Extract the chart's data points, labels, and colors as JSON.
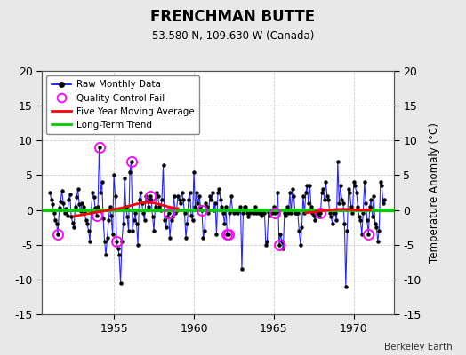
{
  "title": "FRENCHMAN BUTTE",
  "subtitle": "53.580 N, 109.630 W (Canada)",
  "ylabel": "Temperature Anomaly (°C)",
  "credit": "Berkeley Earth",
  "ylim": [
    -15,
    20
  ],
  "yticks": [
    -15,
    -10,
    -5,
    0,
    5,
    10,
    15,
    20
  ],
  "xlim": [
    1950.5,
    1972.5
  ],
  "xticks": [
    1955,
    1960,
    1965,
    1970
  ],
  "bg_color": "#e8e8e8",
  "plot_bg_color": "#ffffff",
  "grid_color": "#cccccc",
  "raw_line_color": "#0000ff",
  "raw_marker_color": "#000000",
  "qc_fail_color": "#ff00ff",
  "moving_avg_color": "#ff0000",
  "trend_color": "#00cc00",
  "raw_data": [
    [
      1951.0,
      2.5
    ],
    [
      1951.083,
      1.5
    ],
    [
      1951.167,
      0.8
    ],
    [
      1951.25,
      -0.5
    ],
    [
      1951.333,
      -1.5
    ],
    [
      1951.417,
      -2.0
    ],
    [
      1951.5,
      -3.5
    ],
    [
      1951.583,
      0.3
    ],
    [
      1951.667,
      1.2
    ],
    [
      1951.75,
      2.8
    ],
    [
      1951.833,
      1.0
    ],
    [
      1951.917,
      -0.5
    ],
    [
      1952.0,
      0.2
    ],
    [
      1952.083,
      -0.8
    ],
    [
      1952.167,
      1.5
    ],
    [
      1952.25,
      2.2
    ],
    [
      1952.333,
      -1.0
    ],
    [
      1952.417,
      -1.8
    ],
    [
      1952.5,
      -2.5
    ],
    [
      1952.583,
      0.5
    ],
    [
      1952.667,
      1.8
    ],
    [
      1952.75,
      3.0
    ],
    [
      1952.833,
      0.8
    ],
    [
      1952.917,
      -0.2
    ],
    [
      1953.0,
      1.0
    ],
    [
      1953.083,
      0.5
    ],
    [
      1953.167,
      -0.3
    ],
    [
      1953.25,
      -1.5
    ],
    [
      1953.333,
      -2.0
    ],
    [
      1953.417,
      -3.0
    ],
    [
      1953.5,
      -4.5
    ],
    [
      1953.583,
      0.0
    ],
    [
      1953.667,
      2.5
    ],
    [
      1953.75,
      1.8
    ],
    [
      1953.833,
      0.3
    ],
    [
      1953.917,
      -0.8
    ],
    [
      1954.0,
      0.5
    ],
    [
      1954.083,
      9.0
    ],
    [
      1954.167,
      2.5
    ],
    [
      1954.25,
      4.0
    ],
    [
      1954.333,
      -1.2
    ],
    [
      1954.417,
      -4.5
    ],
    [
      1954.5,
      -6.5
    ],
    [
      1954.583,
      -4.0
    ],
    [
      1954.667,
      -1.5
    ],
    [
      1954.75,
      0.5
    ],
    [
      1954.833,
      -0.8
    ],
    [
      1954.917,
      -3.5
    ],
    [
      1955.0,
      5.0
    ],
    [
      1955.083,
      2.0
    ],
    [
      1955.167,
      -4.5
    ],
    [
      1955.25,
      -5.5
    ],
    [
      1955.333,
      -6.5
    ],
    [
      1955.417,
      -10.5
    ],
    [
      1955.5,
      -4.5
    ],
    [
      1955.583,
      -2.0
    ],
    [
      1955.667,
      4.5
    ],
    [
      1955.75,
      0.5
    ],
    [
      1955.833,
      -1.0
    ],
    [
      1955.917,
      -3.0
    ],
    [
      1956.0,
      5.5
    ],
    [
      1956.083,
      7.0
    ],
    [
      1956.167,
      -3.0
    ],
    [
      1956.25,
      -1.5
    ],
    [
      1956.333,
      -0.5
    ],
    [
      1956.417,
      -2.0
    ],
    [
      1956.5,
      -5.0
    ],
    [
      1956.583,
      1.5
    ],
    [
      1956.667,
      2.5
    ],
    [
      1956.75,
      1.0
    ],
    [
      1956.833,
      -0.5
    ],
    [
      1956.917,
      -1.5
    ],
    [
      1957.0,
      2.0
    ],
    [
      1957.083,
      1.5
    ],
    [
      1957.167,
      0.5
    ],
    [
      1957.25,
      2.0
    ],
    [
      1957.333,
      1.5
    ],
    [
      1957.417,
      -1.0
    ],
    [
      1957.5,
      -3.0
    ],
    [
      1957.583,
      0.5
    ],
    [
      1957.667,
      2.5
    ],
    [
      1957.75,
      2.0
    ],
    [
      1957.833,
      0.5
    ],
    [
      1957.917,
      0.0
    ],
    [
      1958.0,
      1.5
    ],
    [
      1958.083,
      6.5
    ],
    [
      1958.167,
      -1.5
    ],
    [
      1958.25,
      -2.5
    ],
    [
      1958.333,
      -1.0
    ],
    [
      1958.417,
      -0.5
    ],
    [
      1958.5,
      -4.0
    ],
    [
      1958.583,
      -1.5
    ],
    [
      1958.667,
      -1.0
    ],
    [
      1958.75,
      2.0
    ],
    [
      1958.833,
      -0.5
    ],
    [
      1958.917,
      0.0
    ],
    [
      1959.0,
      2.0
    ],
    [
      1959.083,
      1.5
    ],
    [
      1959.167,
      1.0
    ],
    [
      1959.25,
      2.5
    ],
    [
      1959.333,
      1.5
    ],
    [
      1959.417,
      -0.5
    ],
    [
      1959.5,
      -4.0
    ],
    [
      1959.583,
      -2.0
    ],
    [
      1959.667,
      1.5
    ],
    [
      1959.75,
      2.5
    ],
    [
      1959.833,
      -0.8
    ],
    [
      1959.917,
      -1.5
    ],
    [
      1960.0,
      5.5
    ],
    [
      1960.083,
      0.5
    ],
    [
      1960.167,
      2.5
    ],
    [
      1960.25,
      1.0
    ],
    [
      1960.333,
      2.0
    ],
    [
      1960.417,
      0.5
    ],
    [
      1960.5,
      0.0
    ],
    [
      1960.583,
      -4.0
    ],
    [
      1960.667,
      -3.0
    ],
    [
      1960.75,
      1.0
    ],
    [
      1960.833,
      0.5
    ],
    [
      1960.917,
      -0.5
    ],
    [
      1961.0,
      2.0
    ],
    [
      1961.083,
      1.5
    ],
    [
      1961.167,
      2.5
    ],
    [
      1961.25,
      0.0
    ],
    [
      1961.333,
      1.0
    ],
    [
      1961.417,
      -3.5
    ],
    [
      1961.5,
      2.5
    ],
    [
      1961.583,
      3.0
    ],
    [
      1961.667,
      1.5
    ],
    [
      1961.75,
      0.5
    ],
    [
      1961.833,
      -0.5
    ],
    [
      1961.917,
      -2.0
    ],
    [
      1962.0,
      0.5
    ],
    [
      1962.083,
      -3.5
    ],
    [
      1962.167,
      -3.5
    ],
    [
      1962.25,
      -0.5
    ],
    [
      1962.333,
      2.0
    ],
    [
      1962.417,
      0.0
    ],
    [
      1962.5,
      -0.5
    ],
    [
      1962.583,
      -0.3
    ],
    [
      1962.667,
      0.0
    ],
    [
      1962.75,
      -0.5
    ],
    [
      1962.833,
      0.0
    ],
    [
      1962.917,
      0.5
    ],
    [
      1963.0,
      -8.5
    ],
    [
      1963.083,
      -0.5
    ],
    [
      1963.167,
      0.5
    ],
    [
      1963.25,
      0.5
    ],
    [
      1963.333,
      -0.5
    ],
    [
      1963.417,
      -1.0
    ],
    [
      1963.5,
      -0.5
    ],
    [
      1963.583,
      0.0
    ],
    [
      1963.667,
      -0.3
    ],
    [
      1963.75,
      -0.5
    ],
    [
      1963.833,
      0.5
    ],
    [
      1963.917,
      -0.5
    ],
    [
      1964.0,
      0.0
    ],
    [
      1964.083,
      -0.5
    ],
    [
      1964.167,
      -0.5
    ],
    [
      1964.25,
      -0.8
    ],
    [
      1964.333,
      -0.5
    ],
    [
      1964.417,
      -0.5
    ],
    [
      1964.5,
      -5.0
    ],
    [
      1964.583,
      -4.5
    ],
    [
      1964.667,
      -0.3
    ],
    [
      1964.75,
      -0.8
    ],
    [
      1964.833,
      0.0
    ],
    [
      1964.917,
      -0.5
    ],
    [
      1965.0,
      0.5
    ],
    [
      1965.083,
      -0.5
    ],
    [
      1965.167,
      -0.3
    ],
    [
      1965.25,
      2.5
    ],
    [
      1965.333,
      -5.0
    ],
    [
      1965.417,
      -3.5
    ],
    [
      1965.5,
      -4.5
    ],
    [
      1965.583,
      -5.5
    ],
    [
      1965.667,
      -0.5
    ],
    [
      1965.75,
      -0.8
    ],
    [
      1965.833,
      0.5
    ],
    [
      1965.917,
      -0.5
    ],
    [
      1966.0,
      2.5
    ],
    [
      1966.083,
      -0.5
    ],
    [
      1966.167,
      3.0
    ],
    [
      1966.25,
      2.0
    ],
    [
      1966.333,
      -0.5
    ],
    [
      1966.417,
      -0.5
    ],
    [
      1966.5,
      -0.5
    ],
    [
      1966.583,
      -3.0
    ],
    [
      1966.667,
      -5.0
    ],
    [
      1966.75,
      -2.5
    ],
    [
      1966.833,
      2.0
    ],
    [
      1966.917,
      -0.5
    ],
    [
      1967.0,
      2.5
    ],
    [
      1967.083,
      3.5
    ],
    [
      1967.167,
      1.0
    ],
    [
      1967.25,
      3.5
    ],
    [
      1967.333,
      0.5
    ],
    [
      1967.417,
      -0.5
    ],
    [
      1967.5,
      -0.8
    ],
    [
      1967.583,
      -1.5
    ],
    [
      1967.667,
      -0.5
    ],
    [
      1967.75,
      -0.5
    ],
    [
      1967.833,
      -1.0
    ],
    [
      1967.917,
      -0.5
    ],
    [
      1968.0,
      2.5
    ],
    [
      1968.083,
      3.0
    ],
    [
      1968.167,
      1.5
    ],
    [
      1968.25,
      4.0
    ],
    [
      1968.333,
      2.0
    ],
    [
      1968.417,
      1.5
    ],
    [
      1968.5,
      -0.5
    ],
    [
      1968.583,
      -1.0
    ],
    [
      1968.667,
      -2.0
    ],
    [
      1968.75,
      -0.5
    ],
    [
      1968.833,
      -0.5
    ],
    [
      1968.917,
      -1.5
    ],
    [
      1969.0,
      7.0
    ],
    [
      1969.083,
      1.0
    ],
    [
      1969.167,
      3.5
    ],
    [
      1969.25,
      1.5
    ],
    [
      1969.333,
      1.0
    ],
    [
      1969.417,
      -2.0
    ],
    [
      1969.5,
      -11.0
    ],
    [
      1969.583,
      -3.0
    ],
    [
      1969.667,
      3.0
    ],
    [
      1969.75,
      2.5
    ],
    [
      1969.833,
      0.5
    ],
    [
      1969.917,
      -0.5
    ],
    [
      1970.0,
      4.0
    ],
    [
      1970.083,
      3.5
    ],
    [
      1970.167,
      2.5
    ],
    [
      1970.25,
      0.5
    ],
    [
      1970.333,
      -1.0
    ],
    [
      1970.417,
      -1.5
    ],
    [
      1970.5,
      -3.5
    ],
    [
      1970.583,
      -0.5
    ],
    [
      1970.667,
      4.0
    ],
    [
      1970.75,
      1.0
    ],
    [
      1970.833,
      -1.5
    ],
    [
      1970.917,
      -3.5
    ],
    [
      1971.0,
      0.5
    ],
    [
      1971.083,
      1.5
    ],
    [
      1971.167,
      -1.0
    ],
    [
      1971.25,
      2.0
    ],
    [
      1971.333,
      -2.0
    ],
    [
      1971.417,
      -2.5
    ],
    [
      1971.5,
      -4.5
    ],
    [
      1971.583,
      -3.0
    ],
    [
      1971.667,
      4.0
    ],
    [
      1971.75,
      3.5
    ],
    [
      1971.833,
      1.0
    ],
    [
      1971.917,
      1.5
    ]
  ],
  "qc_fail_points": [
    [
      1951.5,
      -3.5
    ],
    [
      1953.917,
      -0.8
    ],
    [
      1954.083,
      9.0
    ],
    [
      1955.167,
      -4.5
    ],
    [
      1956.083,
      7.0
    ],
    [
      1957.25,
      2.0
    ],
    [
      1958.417,
      -0.5
    ],
    [
      1960.5,
      0.0
    ],
    [
      1962.083,
      -3.5
    ],
    [
      1962.167,
      -3.5
    ],
    [
      1965.083,
      -0.5
    ],
    [
      1965.333,
      -5.0
    ],
    [
      1967.917,
      -0.5
    ],
    [
      1970.917,
      -3.5
    ]
  ],
  "moving_avg_seg1_x": [
    1952.5,
    1953.0,
    1953.5,
    1954.0,
    1954.5,
    1955.0,
    1955.5,
    1956.0,
    1956.5,
    1957.0,
    1957.5,
    1958.0,
    1958.5,
    1959.0
  ],
  "moving_avg_seg1_y": [
    -0.9,
    -0.7,
    -0.5,
    -0.3,
    -0.1,
    0.1,
    0.3,
    0.6,
    0.9,
    1.1,
    1.0,
    0.7,
    0.4,
    0.2
  ],
  "moving_avg_seg2_x": [
    1967.0,
    1967.5,
    1968.0,
    1968.5,
    1969.0,
    1969.5,
    1970.0,
    1970.5,
    1971.0
  ],
  "moving_avg_seg2_y": [
    -0.4,
    -0.3,
    -0.1,
    0.0,
    0.1,
    0.1,
    0.0,
    0.0,
    0.0
  ],
  "trend_x": [
    1950.5,
    1972.5
  ],
  "trend_y": [
    0.0,
    0.0
  ]
}
